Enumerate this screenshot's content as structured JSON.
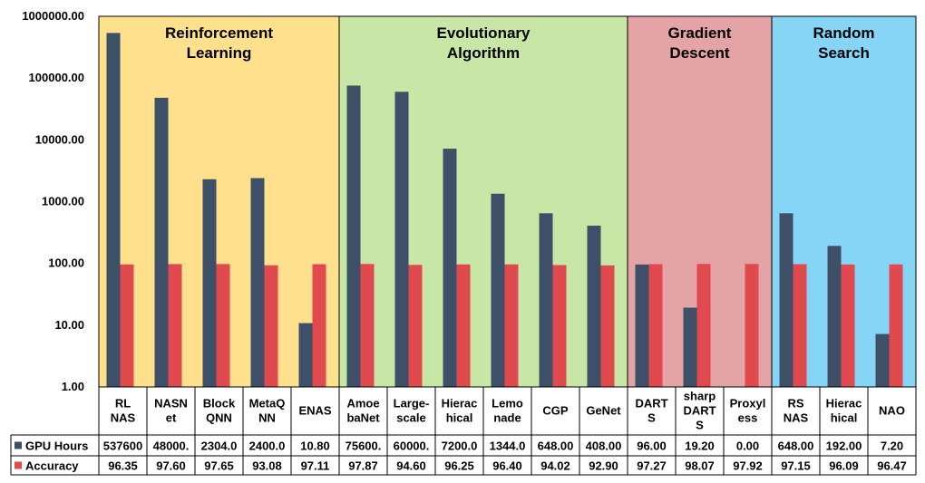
{
  "chart_data": {
    "type": "bar",
    "y_scale": "log",
    "ylim": [
      1,
      1000000
    ],
    "y_ticks": [
      "1.00",
      "10.00",
      "100.00",
      "1000.00",
      "10000.00",
      "100000.00",
      "1000000.00"
    ],
    "groups": [
      {
        "label_lines": [
          "Reinforcement",
          "Learning"
        ],
        "color": "#ffe08c",
        "start": 0,
        "count": 5
      },
      {
        "label_lines": [
          "Evolutionary",
          "Algorithm"
        ],
        "color": "#c8e6a6",
        "start": 5,
        "count": 6
      },
      {
        "label_lines": [
          "Gradient",
          "Descent"
        ],
        "color": "#e4a4a6",
        "start": 11,
        "count": 3
      },
      {
        "label_lines": [
          "Random",
          "Search"
        ],
        "color": "#86d4f6",
        "start": 14,
        "count": 3
      }
    ],
    "categories": [
      [
        "RL",
        "NAS"
      ],
      [
        "NASN",
        "et"
      ],
      [
        "Block",
        "QNN"
      ],
      [
        "MetaQ",
        "NN"
      ],
      [
        "ENAS"
      ],
      [
        "Amoe",
        "baNet"
      ],
      [
        "Large-",
        "scale"
      ],
      [
        "Hierac",
        "hical"
      ],
      [
        "Lemo",
        "nade"
      ],
      [
        "CGP"
      ],
      [
        "GeNet"
      ],
      [
        "DART",
        "S"
      ],
      [
        "sharp",
        "DART",
        "S"
      ],
      [
        "Proxyl",
        "ess"
      ],
      [
        "RS",
        "NAS"
      ],
      [
        "Hierac",
        "hical"
      ],
      [
        "NAO"
      ]
    ],
    "series": [
      {
        "name": "GPU Hours",
        "color": "#3d5068",
        "values": [
          537600,
          48000,
          2304,
          2400,
          10.8,
          75600,
          60000,
          7200,
          1344,
          648,
          408,
          96,
          19.2,
          0,
          648,
          192,
          7.2
        ],
        "labels": [
          "537600",
          "48000.",
          "2304.0",
          "2400.0",
          "10.80",
          "75600.",
          "60000.",
          "7200.0",
          "1344.0",
          "648.00",
          "408.00",
          "96.00",
          "19.20",
          "0.00",
          "648.00",
          "192.00",
          "7.20"
        ]
      },
      {
        "name": "Accuracy",
        "color": "#e04a4e",
        "values": [
          96.35,
          97.6,
          97.65,
          93.08,
          97.11,
          97.87,
          94.6,
          96.25,
          96.4,
          94.02,
          92.9,
          97.27,
          98.07,
          97.92,
          97.15,
          96.09,
          96.47
        ],
        "labels": [
          "96.35",
          "97.60",
          "97.65",
          "93.08",
          "97.11",
          "97.87",
          "94.60",
          "96.25",
          "96.40",
          "94.02",
          "92.90",
          "97.27",
          "98.07",
          "97.92",
          "97.15",
          "96.09",
          "96.47"
        ]
      }
    ]
  }
}
